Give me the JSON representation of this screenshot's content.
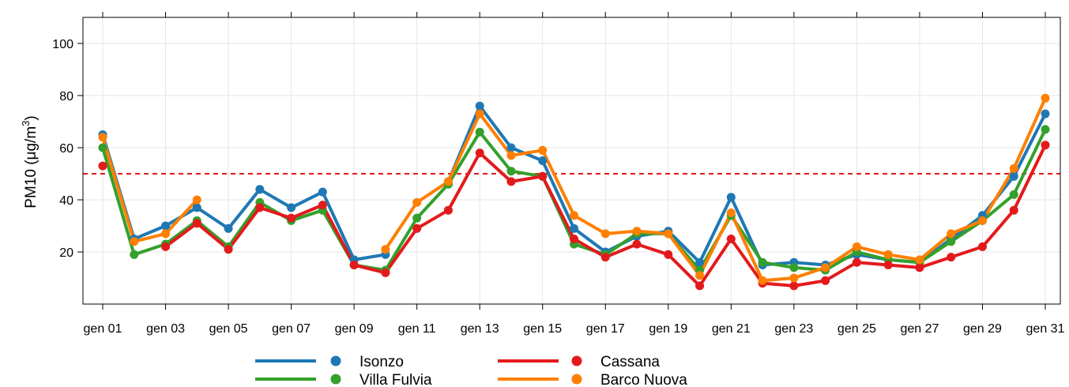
{
  "chart_data": {
    "type": "line",
    "title": "",
    "ylabel": {
      "main": "PM10 (",
      "unit": "μg/m",
      "sup": "3",
      "close": ")"
    },
    "xlabel": "",
    "x": [
      "gen 01",
      "gen 02",
      "gen 03",
      "gen 04",
      "gen 05",
      "gen 06",
      "gen 07",
      "gen 08",
      "gen 09",
      "gen 10",
      "gen 11",
      "gen 12",
      "gen 13",
      "gen 14",
      "gen 15",
      "gen 16",
      "gen 17",
      "gen 18",
      "gen 19",
      "gen 20",
      "gen 21",
      "gen 22",
      "gen 23",
      "gen 24",
      "gen 25",
      "gen 26",
      "gen 27",
      "gen 28",
      "gen 29",
      "gen 30",
      "gen 31"
    ],
    "x_tick_labels": [
      "gen 01",
      "gen 03",
      "gen 05",
      "gen 07",
      "gen 09",
      "gen 11",
      "gen 13",
      "gen 15",
      "gen 17",
      "gen 19",
      "gen 21",
      "gen 23",
      "gen 25",
      "gen 27",
      "gen 29",
      "gen 31"
    ],
    "ylim": [
      0,
      110
    ],
    "y_ticks": [
      20,
      40,
      60,
      80,
      100
    ],
    "grid": true,
    "threshold": {
      "value": 50,
      "color": "#e31a1c",
      "style": "dashed"
    },
    "legend_position": "bottom",
    "series": [
      {
        "name": "Isonzo",
        "color": "#1f78b4",
        "values": [
          65,
          25,
          30,
          37,
          29,
          44,
          37,
          43,
          17,
          19,
          null,
          47,
          76,
          60,
          55,
          29,
          20,
          26,
          28,
          16,
          41,
          15,
          16,
          15,
          19,
          17,
          16,
          25,
          34,
          49,
          73
        ]
      },
      {
        "name": "Villa Fulvia",
        "color": "#33a02c",
        "values": [
          60,
          19,
          23,
          32,
          22,
          39,
          32,
          36,
          15,
          13,
          33,
          46,
          66,
          51,
          49,
          23,
          19,
          27,
          27,
          13,
          34,
          16,
          14,
          13,
          20,
          17,
          16,
          24,
          32,
          42,
          67
        ]
      },
      {
        "name": "Cassana",
        "color": "#e31a1c",
        "values": [
          53,
          null,
          22,
          31,
          21,
          37,
          33,
          38,
          15,
          12,
          29,
          36,
          58,
          47,
          49,
          25,
          18,
          23,
          19,
          7,
          25,
          8,
          7,
          9,
          16,
          15,
          14,
          18,
          22,
          36,
          61
        ]
      },
      {
        "name": "Barco Nuova",
        "color": "#ff7f00",
        "values": [
          64,
          24,
          27,
          40,
          null,
          null,
          null,
          null,
          null,
          21,
          39,
          47,
          73,
          57,
          59,
          34,
          27,
          28,
          27,
          11,
          35,
          9,
          10,
          14,
          22,
          19,
          17,
          27,
          32,
          52,
          79
        ]
      }
    ]
  }
}
